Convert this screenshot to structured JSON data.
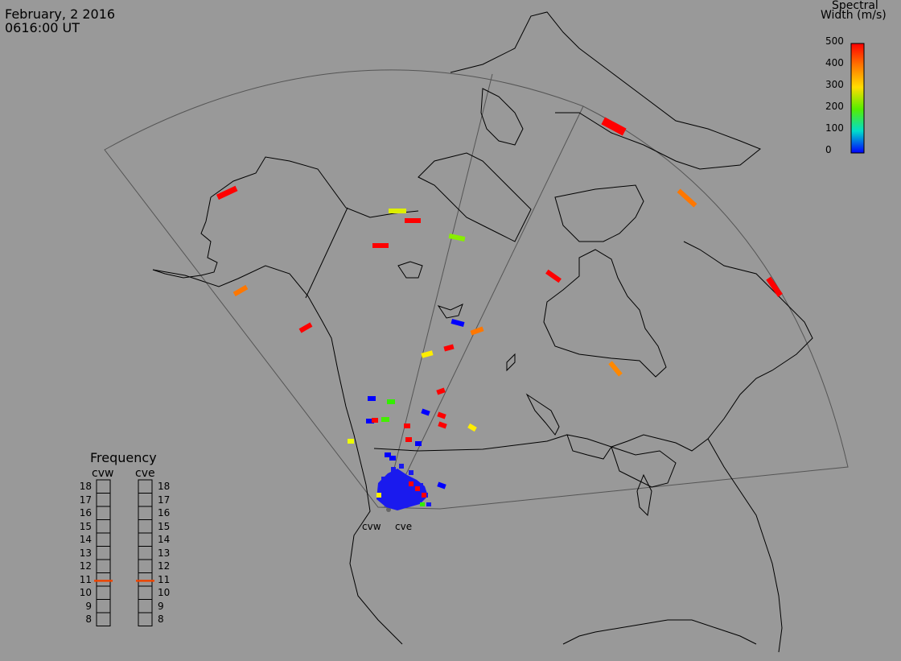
{
  "header": {
    "date": "February, 2 2016",
    "time": "0616:00 UT"
  },
  "colorbar": {
    "title_line1": "Spectral",
    "title_line2": "Width (m/s)",
    "ticks": [
      "500",
      "400",
      "300",
      "200",
      "100",
      "0"
    ],
    "colors": [
      "#ff0000",
      "#ff7700",
      "#ffdd00",
      "#55ee00",
      "#00ddcc",
      "#0000ff"
    ]
  },
  "frequency_panel": {
    "title": "Frequency",
    "radars": [
      "cvw",
      "cve"
    ],
    "scale": [
      "18",
      "17",
      "16",
      "15",
      "14",
      "13",
      "12",
      "11",
      "10",
      "9",
      "8"
    ],
    "values_mhz": [
      10.9,
      10.9
    ],
    "marker_color": "#ee4400"
  },
  "radar_sites": {
    "labels": [
      "cvw",
      "cve"
    ]
  }
}
